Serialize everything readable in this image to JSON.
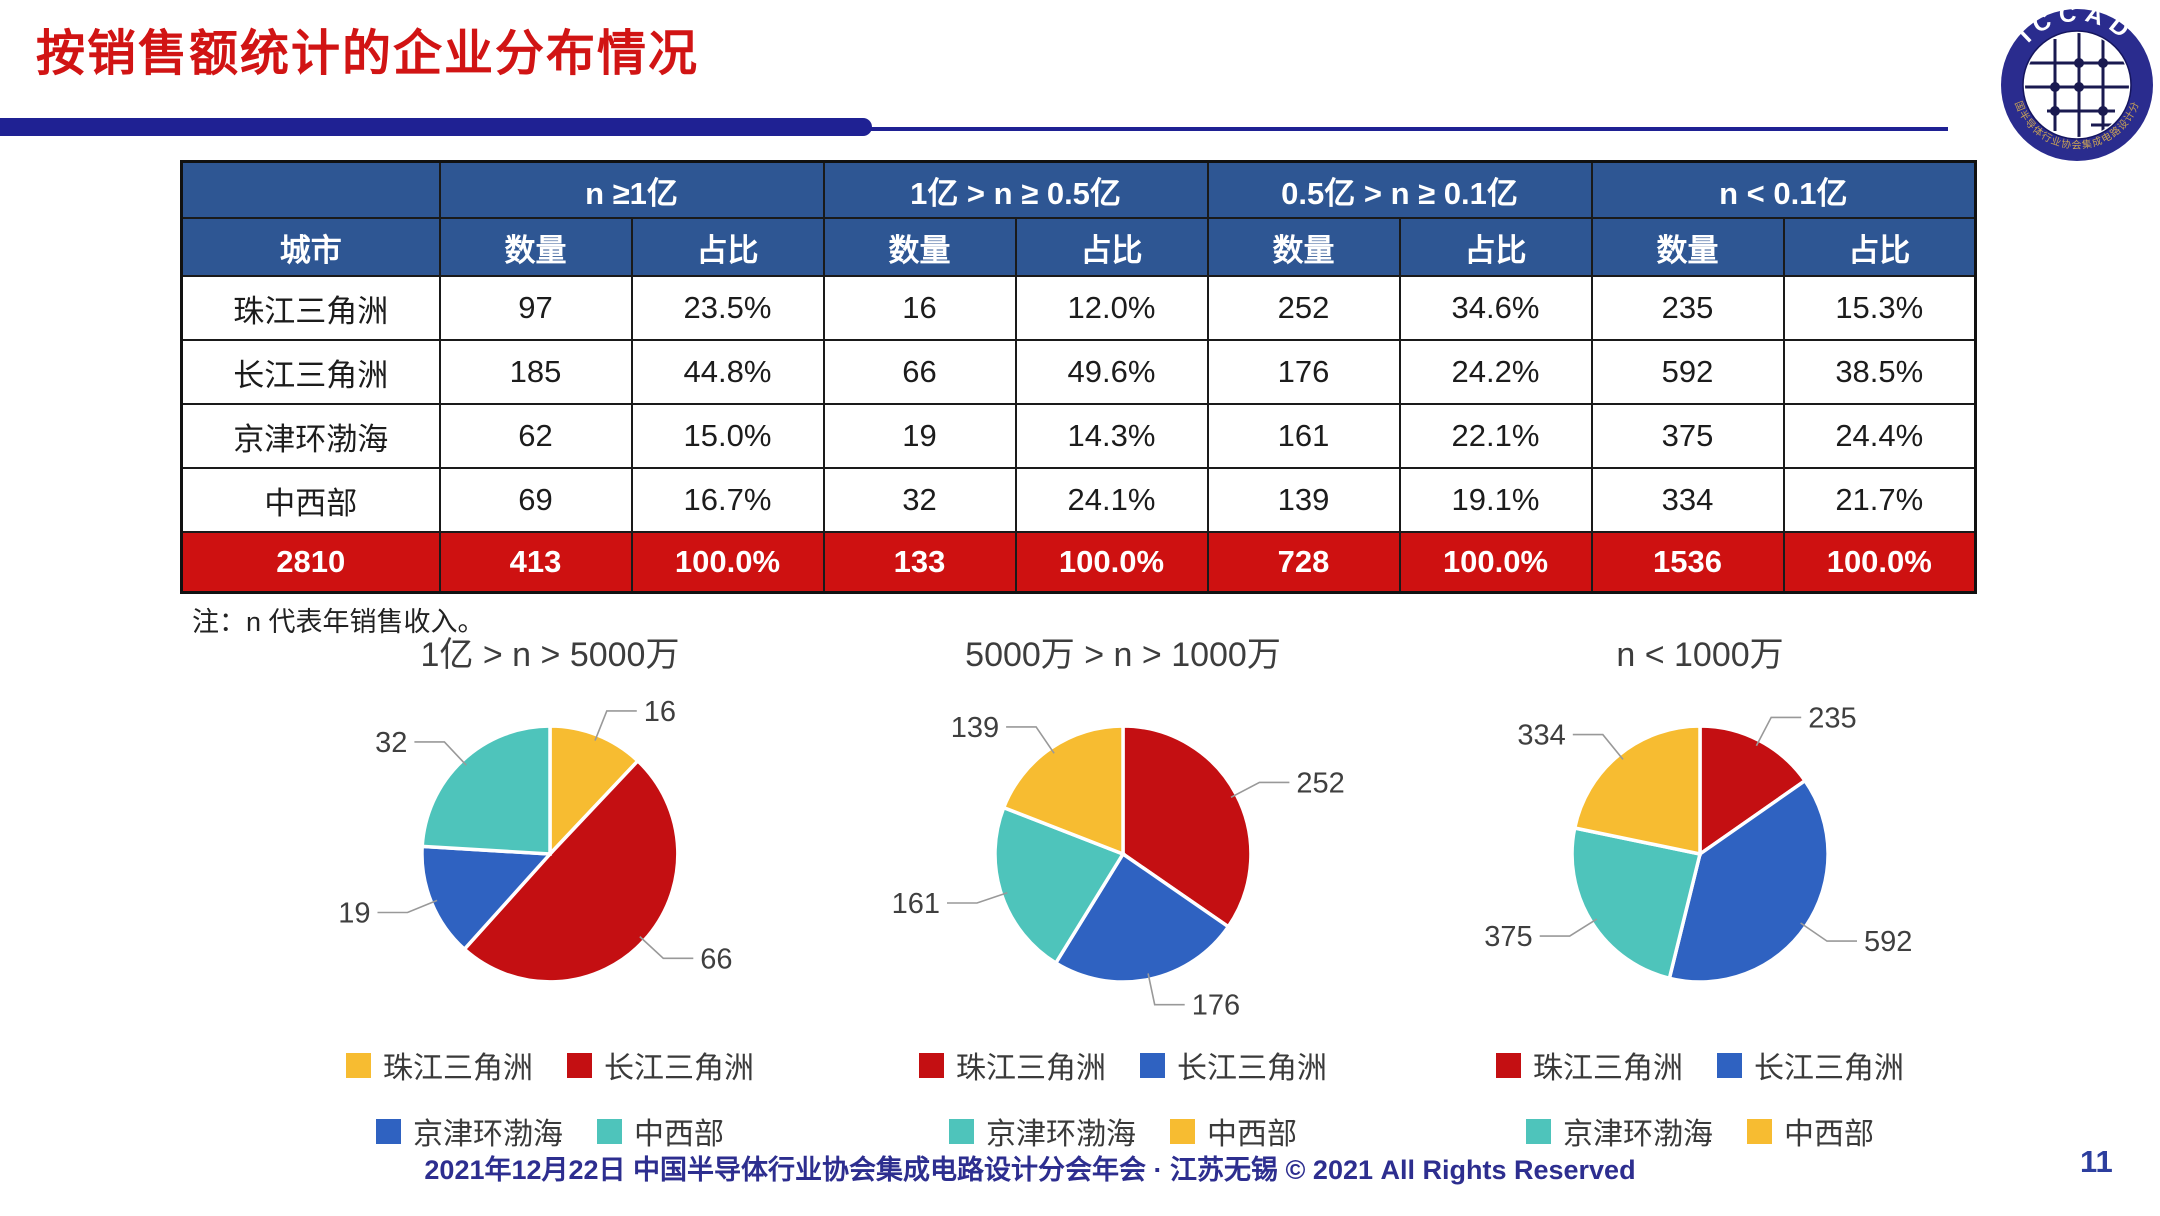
{
  "page": {
    "title": "按销售额统计的企业分布情况",
    "note": "注：n 代表年销售收入。",
    "footer": "2021年12月22日 中国半导体行业协会集成电路设计分会年会 · 江苏无锡 © 2021 All Rights Reserved",
    "page_number": "11"
  },
  "logo": {
    "name": "ICCAD",
    "arc_text": "ICCAD",
    "ring_text": "中国半导体行业协会集成电路设计分会"
  },
  "colors": {
    "title_red": "#D11414",
    "divider_navy": "#1F2193",
    "header_blue": "#2E5693",
    "total_red": "#CE1111",
    "table_border": "#1a1a1a",
    "footer_navy": "#2D2E8F",
    "pagenum_blue": "#2C3E9E",
    "logo_navy": "#2A2C8E",
    "logo_gold": "#C9A355",
    "pie_yellow": "#F7BC31",
    "pie_red": "#C40F12",
    "pie_blue": "#2F62C1",
    "pie_teal": "#4EC4BB"
  },
  "table": {
    "corner_label": "城市",
    "group_headers": [
      "n ≥1亿",
      "1亿 > n ≥ 0.5亿",
      "0.5亿 > n ≥ 0.1亿",
      "n < 0.1亿"
    ],
    "sub_headers": [
      "数量",
      "占比"
    ],
    "rows": [
      {
        "city": "珠江三角洲",
        "values": [
          "97",
          "23.5%",
          "16",
          "12.0%",
          "252",
          "34.6%",
          "235",
          "15.3%"
        ]
      },
      {
        "city": "长江三角洲",
        "values": [
          "185",
          "44.8%",
          "66",
          "49.6%",
          "176",
          "24.2%",
          "592",
          "38.5%"
        ]
      },
      {
        "city": "京津环渤海",
        "values": [
          "62",
          "15.0%",
          "19",
          "14.3%",
          "161",
          "22.1%",
          "375",
          "24.4%"
        ]
      },
      {
        "city": "中西部",
        "values": [
          "69",
          "16.7%",
          "32",
          "24.1%",
          "139",
          "19.1%",
          "334",
          "21.7%"
        ]
      }
    ],
    "total_row": {
      "city": "2810",
      "values": [
        "413",
        "100.0%",
        "133",
        "100.0%",
        "728",
        "100.0%",
        "1536",
        "100.0%"
      ]
    }
  },
  "chart_data": [
    {
      "type": "pie",
      "title": "1亿 > n > 5000万",
      "categories": [
        "珠江三角洲",
        "长江三角洲",
        "京津环渤海",
        "中西部"
      ],
      "values": [
        16,
        66,
        19,
        32
      ],
      "colors": [
        "#F7BC31",
        "#C40F12",
        "#2F62C1",
        "#4EC4BB"
      ],
      "total": 133,
      "legend_position": "bottom",
      "start_angle_deg": 0,
      "direction": "clockwise"
    },
    {
      "type": "pie",
      "title": "5000万 > n > 1000万",
      "categories": [
        "珠江三角洲",
        "长江三角洲",
        "京津环渤海",
        "中西部"
      ],
      "values": [
        252,
        176,
        161,
        139
      ],
      "colors": [
        "#C40F12",
        "#2F62C1",
        "#4EC4BB",
        "#F7BC31"
      ],
      "total": 728,
      "legend_position": "bottom",
      "start_angle_deg": 0,
      "direction": "clockwise"
    },
    {
      "type": "pie",
      "title": "n < 1000万",
      "categories": [
        "珠江三角洲",
        "长江三角洲",
        "京津环渤海",
        "中西部"
      ],
      "values": [
        235,
        592,
        375,
        334
      ],
      "colors": [
        "#C40F12",
        "#2F62C1",
        "#4EC4BB",
        "#F7BC31"
      ],
      "total": 1536,
      "legend_position": "bottom",
      "start_angle_deg": 0,
      "direction": "clockwise"
    }
  ]
}
